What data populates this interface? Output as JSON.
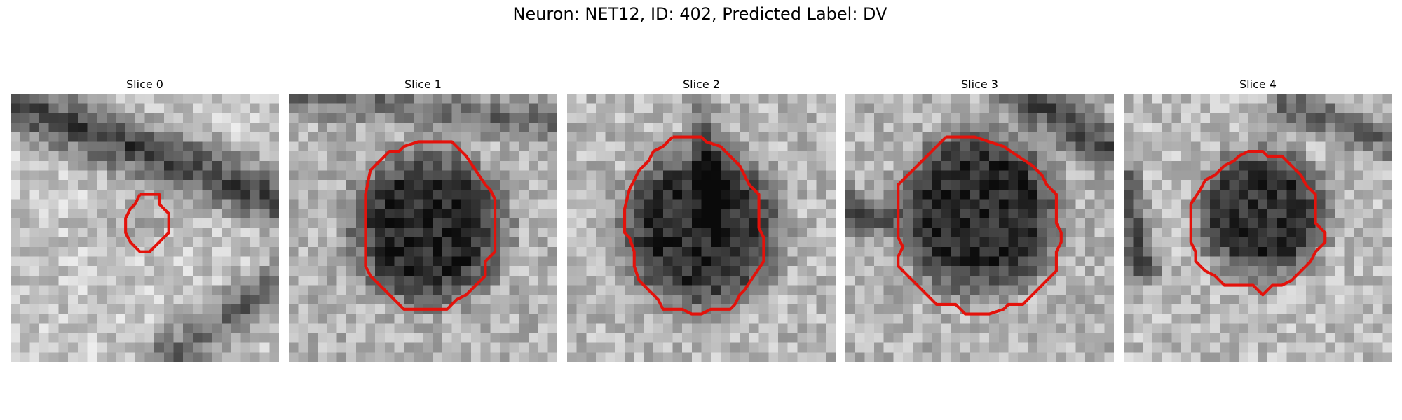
{
  "figure": {
    "title": "Neuron: NET12, ID: 402, Predicted Label: DV"
  },
  "contour_color": "#e3120b",
  "slices": [
    {
      "title": "Slice 0"
    },
    {
      "title": "Slice 1"
    },
    {
      "title": "Slice 2"
    },
    {
      "title": "Slice 3"
    },
    {
      "title": "Slice 4"
    }
  ]
}
